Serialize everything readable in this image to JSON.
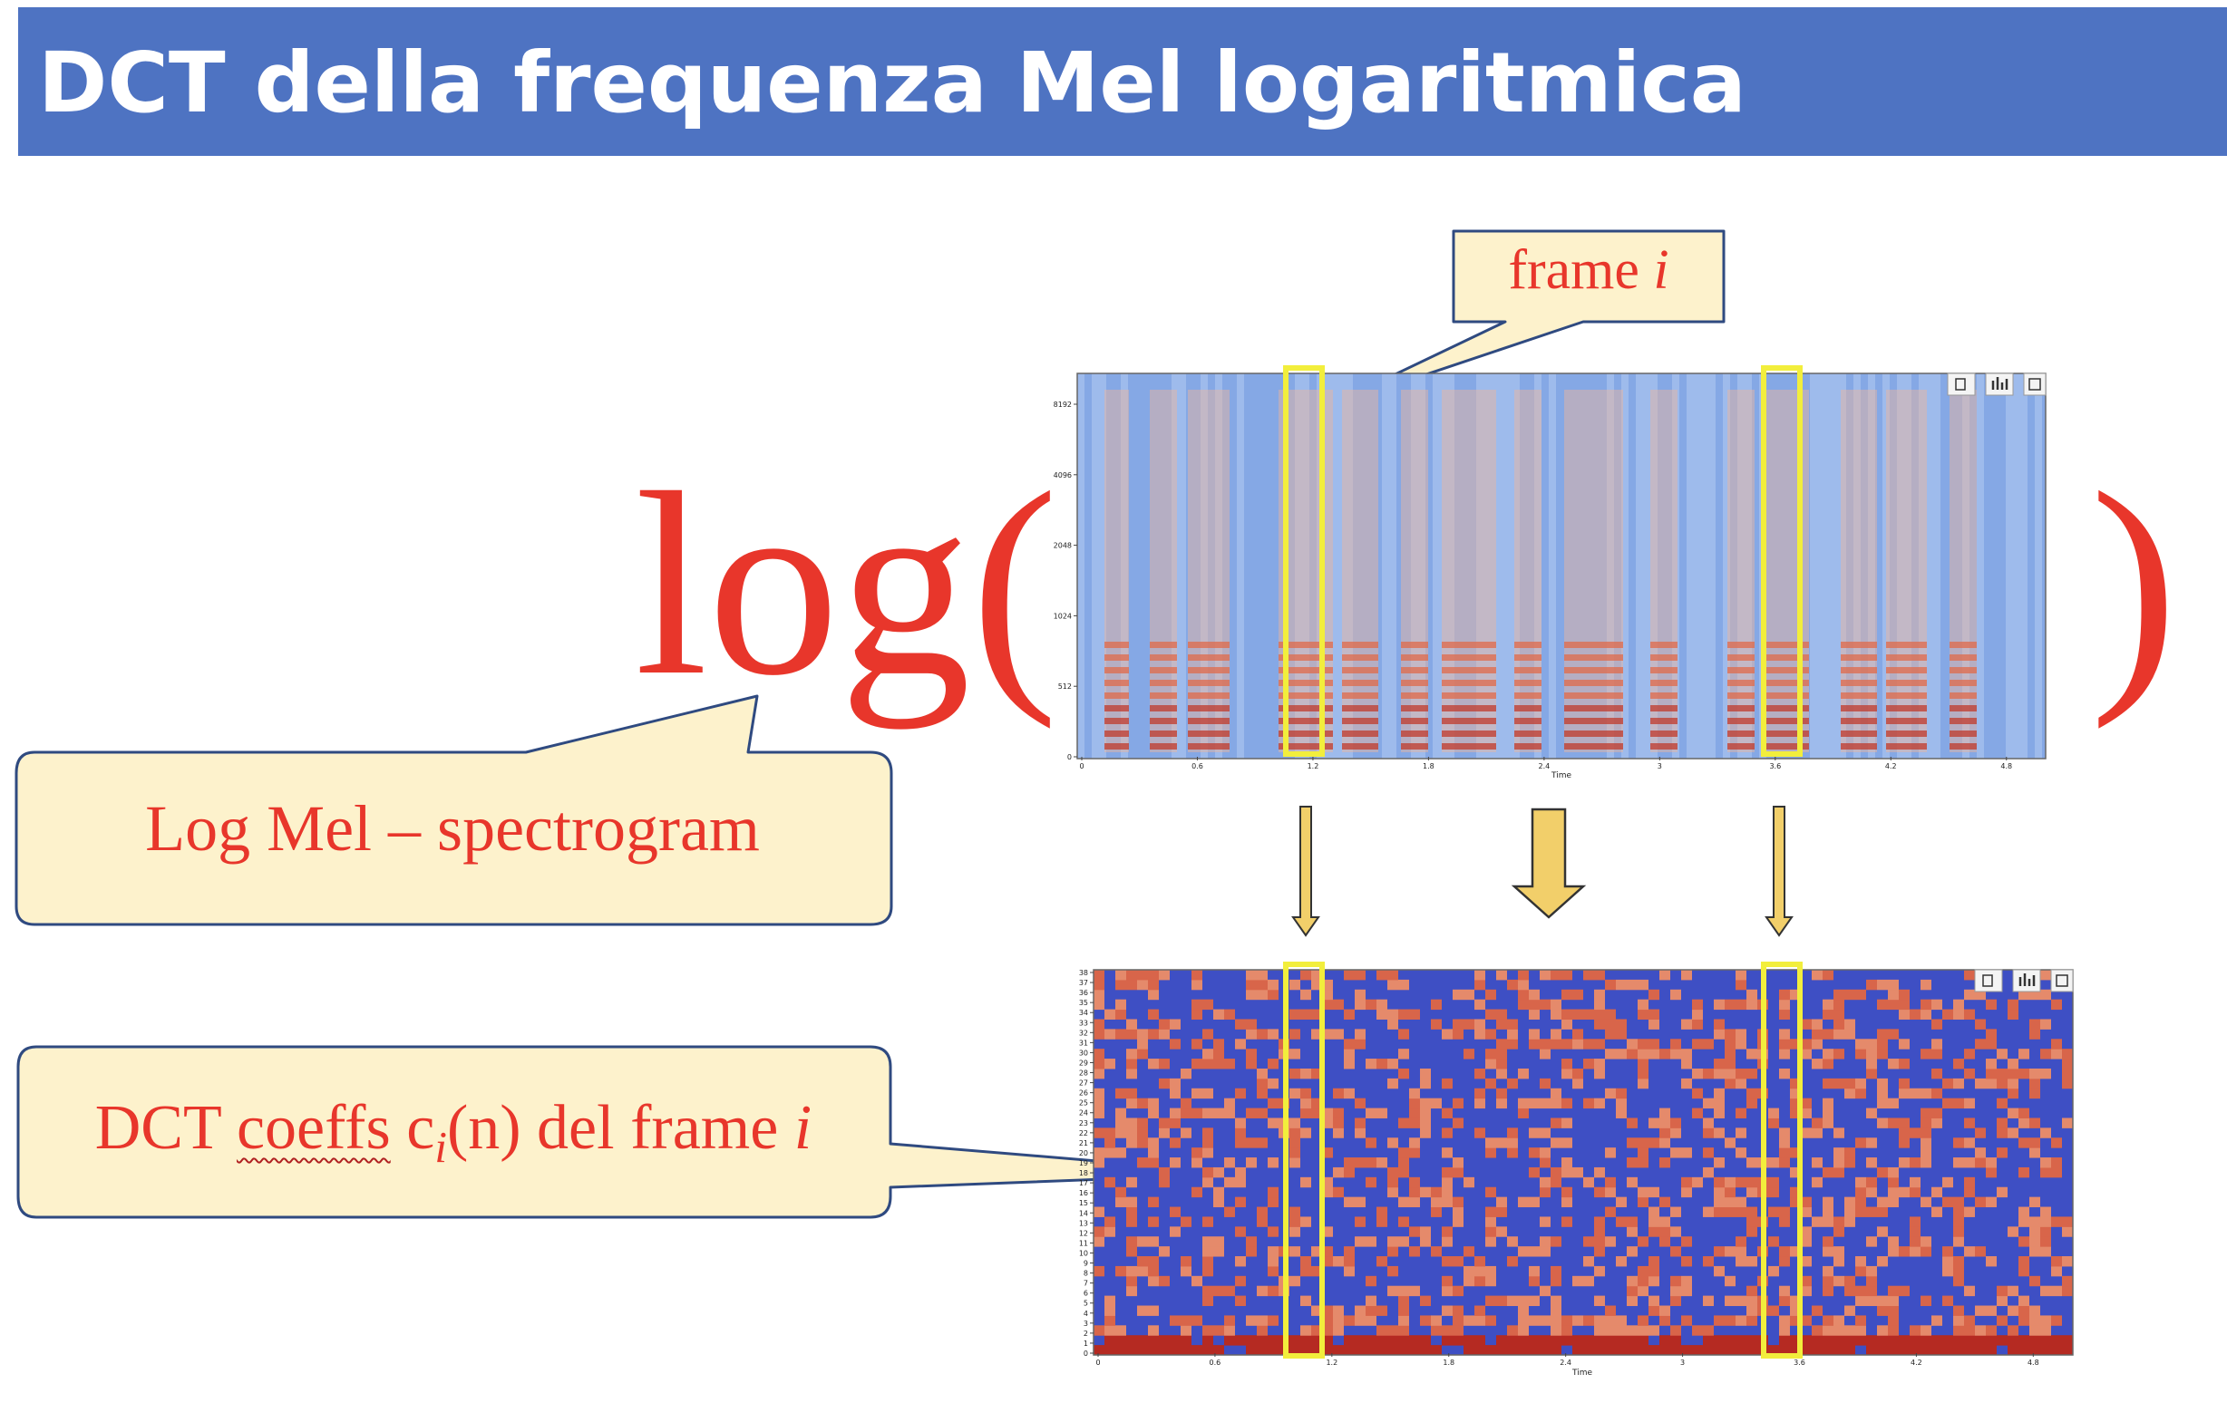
{
  "slide": {
    "title": "DCT della frequenza Mel logaritmica",
    "log_text": "log(",
    "close_paren": ")"
  },
  "callouts": {
    "frame": {
      "label": "frame ",
      "var": "i"
    },
    "logmel": {
      "label": "Log Mel – spectrogram"
    },
    "dct": {
      "label_a": "DCT ",
      "label_b": "coeffs",
      "label_c": " c",
      "sub": "i",
      "label_d": "(n) del frame ",
      "var": "i"
    }
  },
  "spectrogram": {
    "y_ticks": [
      "8192",
      "4096",
      "2048",
      "1024",
      "512",
      "0"
    ],
    "x_ticks": [
      "0",
      "0.6",
      "1.2",
      "1.8",
      "2.4",
      "3",
      "3.6",
      "4.2",
      "4.8"
    ],
    "xlabel": "Time"
  },
  "mfcc": {
    "y_ticks": [
      "38",
      "37",
      "36",
      "35",
      "34",
      "33",
      "32",
      "31",
      "30",
      "29",
      "28",
      "27",
      "26",
      "25",
      "24",
      "23",
      "22",
      "21",
      "20",
      "19",
      "18",
      "17",
      "16",
      "15",
      "14",
      "13",
      "12",
      "11",
      "10",
      "9",
      "8",
      "7",
      "6",
      "5",
      "4",
      "3",
      "2",
      "1",
      "0"
    ],
    "x_ticks": [
      "0",
      "0.6",
      "1.2",
      "1.8",
      "2.4",
      "3",
      "3.6",
      "4.2",
      "4.8"
    ],
    "xlabel": "Time"
  },
  "colors": {
    "title_bar": "#4e73c2",
    "accent_red": "#e8362b",
    "callout_fill": "#fdf2cc",
    "callout_stroke": "#2f4a80",
    "highlight": "#f2ee3c",
    "arrow_fill": "#f2cf6a"
  },
  "icons": [
    "copy-icon",
    "bar-chart-icon",
    "save-icon"
  ]
}
